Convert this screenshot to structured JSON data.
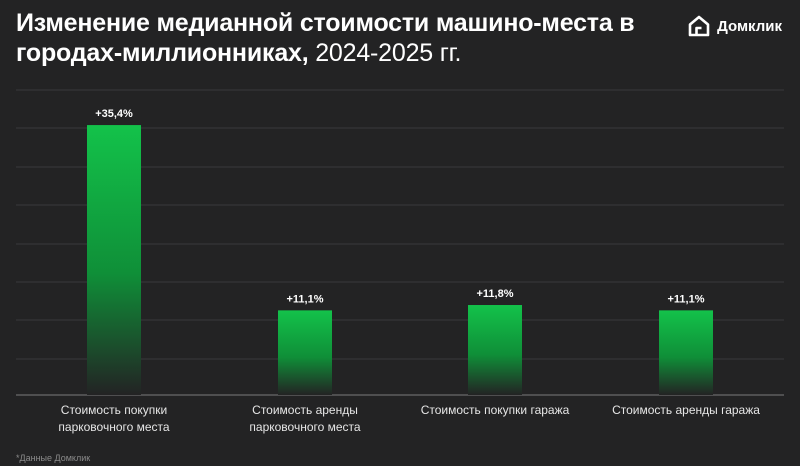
{
  "header": {
    "title_bold": "Изменение медианной стоимости машино-места в городах-миллионниках,",
    "title_light": "2024-2025 гг."
  },
  "brand": {
    "logo_text": "Домклик",
    "accent_color": "#13c24a"
  },
  "footnote": "*Данные Домклик",
  "chart_data": {
    "type": "bar",
    "title": "Изменение медианной стоимости машино-места в городах-миллионниках, 2024-2025 гг.",
    "categories": [
      [
        "Стоимость покупки",
        "парковочного места"
      ],
      [
        "Стоимость аренды",
        "парковочного места"
      ],
      [
        "Стоимость покупки гаража"
      ],
      [
        "Стоимость аренды гаража"
      ]
    ],
    "values": [
      35.4,
      11.1,
      11.8,
      11.1
    ],
    "data_labels": [
      "+35,4%",
      "+11,1%",
      "+11,8%",
      "+11,1%"
    ],
    "unit": "%",
    "ylim": [
      0,
      40
    ],
    "grid": true,
    "bar_color_top": "#13c24a",
    "bar_color_bottom": "#232324"
  }
}
